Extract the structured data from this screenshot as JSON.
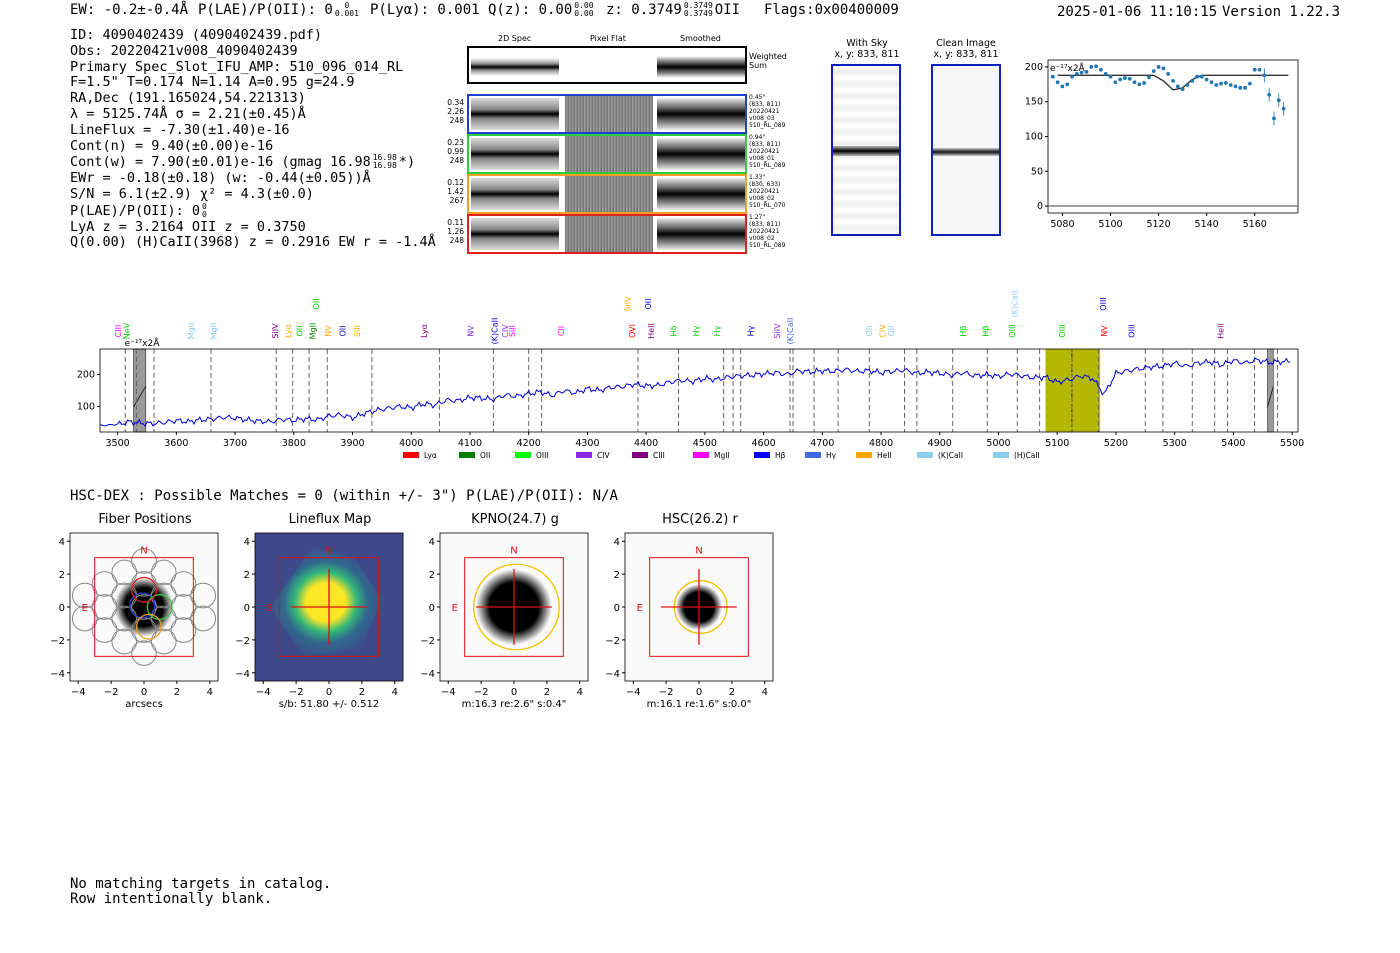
{
  "header": {
    "ew": "EW: -0.2±-0.4Å",
    "plae_label": "P(LAE)/P(OII): 0",
    "plae_sup": "0",
    "plae_sub": "0.001",
    "plya": "P(Lyα): 0.001",
    "qz_label": "Q(z): 0.00",
    "qz_sup": "0.00",
    "qz_sub": "0.00",
    "z_label": "z: 0.3749",
    "z_sup": "0.3749",
    "z_sub": "0.3749",
    "z_line": "OII",
    "flags": "Flags:0x00400009",
    "datetime": "2025-01-06 11:10:15",
    "version": "Version 1.22.3"
  },
  "info": {
    "id": "ID: 4090402439 (4090402439.pdf)",
    "obs": "Obs: 20220421v008_4090402439",
    "primary": "Primary Spec_Slot_IFU_AMP: 510_096_014_RL",
    "f": "F=1.5\"  T=0.174  N=1.14  A=0.95  g=24.9",
    "radec": "RA,Dec (191.165024,54.221313)",
    "lambda": "λ = 5125.74Å  σ = 2.21(±0.45)Å",
    "lineflux": "LineFlux = -7.30(±1.40)e-16",
    "contn": "Cont(n) = 9.40(±0.00)e-16",
    "contw": "Cont(w) = 7.90(±0.01)e-16 (gmag 16.98",
    "contw_sup": "16.98",
    "contw_sub": "16.98",
    "contw_end": "*)",
    "ewr": "EWr = -0.18(±0.18) (w: -0.44(±0.05))Å",
    "sn": "S/N = 6.1(±2.9)  χ² = 4.3(±0.0)",
    "plae": "P(LAE)/P(OII): 0",
    "plae_sup": "0",
    "plae_sub": "0",
    "lya": "LyA z = 3.2164  OII z = 0.3750",
    "q": "Q(0.00) (H)CaII(3968) z = 0.2916  EW r = -1.4Å"
  },
  "fiber_panel": {
    "col_2d": "2D Spec",
    "col_flat": "Pixel Flat",
    "col_smooth": "Smoothed",
    "weighted": "Weighted\nSum",
    "rows": [
      {
        "left": "0.34\n2.26\n248",
        "right": "0.45\"\n(833, 811)\n20220421\nv008_03\n510_RL_089",
        "color": "#1f3fd0"
      },
      {
        "left": "0.23\n0.99\n248",
        "right": "0.94\"\n(833, 811)\n20220421\nv008_01\n510_RL_089",
        "color": "#2ecc40"
      },
      {
        "left": "0.12\n1.42\n267",
        "right": "1.33\"\n(830, 633)\n20220421\nv008_02\n510_RL_070",
        "color": "#f0a020"
      },
      {
        "left": "0.11\n1.26\n248",
        "right": "1.27\"\n(833, 811)\n20220421\nv008_02\n510_RL_089",
        "color": "#e02020"
      }
    ]
  },
  "sky_panels": {
    "with_sky_title": "With Sky",
    "with_sky_xy": "x, y: 833, 811",
    "clean_title": "Clean Image",
    "clean_xy": "x, y: 833, 811"
  },
  "zoom_chart": {
    "unit": "e⁻¹⁷x2Å"
  },
  "chart_data": [
    {
      "type": "scatter",
      "title": "zoom spectrum",
      "ylabel": "e⁻¹⁷x2Å",
      "xlim": [
        5074,
        5178
      ],
      "ylim": [
        -10,
        210
      ],
      "xticks": [
        5080,
        5100,
        5120,
        5140,
        5160
      ],
      "yticks": [
        0,
        50,
        100,
        150,
        200
      ],
      "x": [
        5076,
        5078,
        5080,
        5082,
        5084,
        5086,
        5088,
        5090,
        5092,
        5094,
        5096,
        5098,
        5100,
        5102,
        5104,
        5106,
        5108,
        5110,
        5112,
        5114,
        5116,
        5118,
        5120,
        5122,
        5124,
        5126,
        5128,
        5130,
        5132,
        5134,
        5136,
        5138,
        5140,
        5142,
        5144,
        5146,
        5148,
        5150,
        5152,
        5154,
        5156,
        5158,
        5160,
        5162,
        5164,
        5166,
        5168,
        5170,
        5172
      ],
      "y": [
        186,
        178,
        172,
        175,
        186,
        190,
        192,
        193,
        200,
        201,
        196,
        190,
        186,
        178,
        182,
        184,
        183,
        178,
        175,
        177,
        185,
        194,
        200,
        198,
        190,
        180,
        172,
        168,
        174,
        180,
        186,
        186,
        182,
        178,
        174,
        176,
        177,
        174,
        172,
        170,
        170,
        176,
        196,
        196,
        188,
        160,
        126,
        152,
        140
      ],
      "fit": {
        "x": [
          5078,
          5112,
          5118,
          5122,
          5126,
          5130,
          5134,
          5138,
          5174
        ],
        "y": [
          188,
          188,
          188,
          180,
          167,
          170,
          182,
          188,
          188
        ]
      }
    },
    {
      "type": "line",
      "title": "full spectrum",
      "xlim": [
        3470,
        5510
      ],
      "ylim": [
        20,
        280
      ],
      "xticks": [
        3500,
        3600,
        3700,
        3800,
        3900,
        4000,
        4100,
        4200,
        4300,
        4400,
        4500,
        4600,
        4700,
        4800,
        4900,
        5000,
        5100,
        5200,
        5300,
        5400,
        5500
      ],
      "yticks": [
        100,
        200
      ],
      "unit": "e⁻¹⁷x2Å",
      "series": [
        {
          "name": "spectrum",
          "color": "#0000dd",
          "x": [
            3470,
            3500,
            3520,
            3540,
            3560,
            3580,
            3600,
            3620,
            3640,
            3660,
            3680,
            3700,
            3720,
            3740,
            3760,
            3780,
            3800,
            3820,
            3840,
            3860,
            3880,
            3900,
            3920,
            3940,
            3960,
            3980,
            4000,
            4020,
            4040,
            4060,
            4080,
            4100,
            4120,
            4140,
            4160,
            4180,
            4200,
            4220,
            4240,
            4260,
            4280,
            4300,
            4320,
            4340,
            4360,
            4380,
            4400,
            4420,
            4440,
            4460,
            4480,
            4500,
            4520,
            4540,
            4560,
            4580,
            4600,
            4620,
            4640,
            4660,
            4680,
            4700,
            4720,
            4740,
            4760,
            4780,
            4800,
            4820,
            4840,
            4860,
            4880,
            4900,
            4920,
            4940,
            4960,
            4980,
            5000,
            5020,
            5040,
            5060,
            5080,
            5100,
            5120,
            5140,
            5160,
            5180,
            5200,
            5220,
            5240,
            5260,
            5280,
            5300,
            5320,
            5340,
            5360,
            5380,
            5400,
            5420,
            5440,
            5460,
            5480,
            5500
          ],
          "y": [
            40,
            44,
            52,
            48,
            46,
            50,
            56,
            52,
            58,
            60,
            66,
            64,
            58,
            54,
            52,
            60,
            56,
            62,
            58,
            70,
            74,
            64,
            78,
            88,
            94,
            100,
            96,
            108,
            104,
            120,
            118,
            128,
            126,
            122,
            136,
            132,
            140,
            146,
            134,
            150,
            142,
            156,
            150,
            160,
            162,
            170,
            164,
            166,
            176,
            182,
            178,
            188,
            184,
            192,
            196,
            198,
            202,
            206,
            200,
            212,
            208,
            212,
            210,
            216,
            210,
            212,
            206,
            210,
            214,
            204,
            208,
            204,
            198,
            206,
            196,
            200,
            194,
            202,
            196,
            190,
            192,
            176,
            184,
            196,
            188,
            138,
            204,
            212,
            218,
            224,
            226,
            236,
            226,
            236,
            240,
            230,
            244,
            236,
            246,
            238,
            240,
            242
          ]
        }
      ],
      "masked": [
        [
          3527,
          3548
        ],
        [
          5458,
          5468
        ]
      ],
      "highlight": [
        5080,
        5173
      ],
      "vlines": [
        3513,
        3532,
        3562,
        3659,
        3770,
        3798,
        3826,
        3857,
        3933,
        4048,
        4140,
        4200,
        4222,
        4386,
        4455,
        4532,
        4548,
        4561,
        4645,
        4650,
        4686,
        4727,
        4780,
        4840,
        4861,
        4922,
        4981,
        5032,
        5070,
        5125,
        5170,
        5250,
        5280,
        5330,
        5368,
        5390,
        5436,
        5475
      ]
    }
  ],
  "full_spectrum": {
    "unit": "e⁻¹⁷x2Å",
    "legend": [
      {
        "label": "Lyα",
        "color": "#ff0000"
      },
      {
        "label": "OII",
        "color": "#008000"
      },
      {
        "label": "OIII",
        "color": "#00ff00"
      },
      {
        "label": "CIV",
        "color": "#8a2be2"
      },
      {
        "label": "CIII",
        "color": "#800080"
      },
      {
        "label": "MgII",
        "color": "#ff00ff"
      },
      {
        "label": "Hβ",
        "color": "#0000ff"
      },
      {
        "label": "Hγ",
        "color": "#4169e1"
      },
      {
        "label": "HeII",
        "color": "#ffa500"
      },
      {
        "label": "(K)CaII",
        "color": "#87ceeb"
      },
      {
        "label": "(H)CaII",
        "color": "#87ceeb"
      }
    ],
    "lines": [
      {
        "label": "CIII",
        "x": 3506,
        "row": 0,
        "color": "#ff00ff"
      },
      {
        "label": "NeV",
        "x": 3520,
        "row": 0,
        "color": "#00cc00"
      },
      {
        "label": "MgII",
        "x": 3630,
        "row": 0,
        "color": "#87ceeb"
      },
      {
        "label": "MgII",
        "x": 3668,
        "row": 0,
        "color": "#87ceeb"
      },
      {
        "label": "SiIV",
        "x": 3773,
        "row": 0,
        "color": "#800080"
      },
      {
        "label": "Lyα",
        "x": 3795,
        "row": 0,
        "color": "#ffa500"
      },
      {
        "label": "OII",
        "x": 3815,
        "row": 0,
        "color": "#00cc00"
      },
      {
        "label": "MgII",
        "x": 3837,
        "row": 0,
        "color": "#008000"
      },
      {
        "label": "OII",
        "x": 3843,
        "row": 1,
        "color": "#00cc00"
      },
      {
        "label": "NV",
        "x": 3863,
        "row": 0,
        "color": "#ffa500"
      },
      {
        "label": "OII",
        "x": 3888,
        "row": 0,
        "color": "#0000cc"
      },
      {
        "label": "SiII",
        "x": 3913,
        "row": 0,
        "color": "#ffa500"
      },
      {
        "label": "Lyα",
        "x": 4027,
        "row": 0,
        "color": "#800080"
      },
      {
        "label": "NV",
        "x": 4106,
        "row": 0,
        "color": "#8a2be2"
      },
      {
        "label": "(K)CaII",
        "x": 4147,
        "row": 0,
        "color": "#0000cc"
      },
      {
        "label": "CIV",
        "x": 4165,
        "row": 0,
        "color": "#8a2be2"
      },
      {
        "label": "SiII",
        "x": 4177,
        "row": 0,
        "color": "#ff00ff"
      },
      {
        "label": "CII",
        "x": 4260,
        "row": 0,
        "color": "#ff00ff"
      },
      {
        "label": "SiIV",
        "x": 4373,
        "row": 1,
        "color": "#ffa500"
      },
      {
        "label": "OVI",
        "x": 4381,
        "row": 0,
        "color": "#ff0000"
      },
      {
        "label": "OII",
        "x": 4408,
        "row": 1,
        "color": "#0000cc"
      },
      {
        "label": "HeII",
        "x": 4413,
        "row": 0,
        "color": "#800080"
      },
      {
        "label": "Hδ",
        "x": 4452,
        "row": 0,
        "color": "#00cc00"
      },
      {
        "label": "Hγ",
        "x": 4490,
        "row": 0,
        "color": "#00cc00"
      },
      {
        "label": "Hγ",
        "x": 4526,
        "row": 0,
        "color": "#00cc00"
      },
      {
        "label": "Hγ",
        "x": 4583,
        "row": 0,
        "color": "#0000ff"
      },
      {
        "label": "SiIV",
        "x": 4628,
        "row": 0,
        "color": "#8a2be2"
      },
      {
        "label": "(K)CaII",
        "x": 4650,
        "row": 0,
        "color": "#4169e1"
      },
      {
        "label": "OII",
        "x": 4785,
        "row": 0,
        "color": "#87ceeb"
      },
      {
        "label": "CIV",
        "x": 4808,
        "row": 0,
        "color": "#ffa500"
      },
      {
        "label": "OII",
        "x": 4822,
        "row": 0,
        "color": "#87ceeb"
      },
      {
        "label": "Hβ",
        "x": 4945,
        "row": 0,
        "color": "#00cc00"
      },
      {
        "label": "Hβ",
        "x": 4983,
        "row": 0,
        "color": "#00cc00"
      },
      {
        "label": "OIII",
        "x": 5028,
        "row": 0,
        "color": "#00cc00"
      },
      {
        "label": "(K)CaII",
        "x": 5032,
        "row": 1,
        "color": "#87ceeb"
      },
      {
        "label": "OIII",
        "x": 5113,
        "row": 0,
        "color": "#00cc00"
      },
      {
        "label": "NV",
        "x": 5185,
        "row": 0,
        "color": "#ff0000"
      },
      {
        "label": "OIII",
        "x": 5183,
        "row": 1,
        "color": "#0000cc"
      },
      {
        "label": "OIII",
        "x": 5232,
        "row": 0,
        "color": "#0000cc"
      },
      {
        "label": "HeII",
        "x": 5383,
        "row": 0,
        "color": "#800080"
      }
    ]
  },
  "hsc": {
    "title": "HSC-DEX : Possible Matches = 0 (within +/- 3\")  P(LAE)/P(OII): N/A"
  },
  "cutouts": [
    {
      "title": "Fiber Positions",
      "xlabel": "arcsecs",
      "kind": "fibers"
    },
    {
      "title": "Lineflux Map",
      "xlabel": "s/b: 51.80 +/- 0.512",
      "kind": "lineflux"
    },
    {
      "title": "KPNO(24.7) g",
      "xlabel": "m:16.3  re:2.6\"  s:0.4\"",
      "kind": "kpno"
    },
    {
      "title": "HSC(26.2) r",
      "xlabel": "m:16.1  re:1.6\"  s:0.0\"",
      "kind": "hsc"
    }
  ],
  "cutout_axes": {
    "ticks": [
      "−4",
      "−2",
      "0",
      "2",
      "4"
    ],
    "yticks": [
      "4",
      "2",
      "0",
      "−2",
      "−4"
    ],
    "north": "N",
    "east": "E"
  },
  "footer": {
    "line1": "No matching targets in catalog.",
    "line2": "Row intentionally blank."
  }
}
